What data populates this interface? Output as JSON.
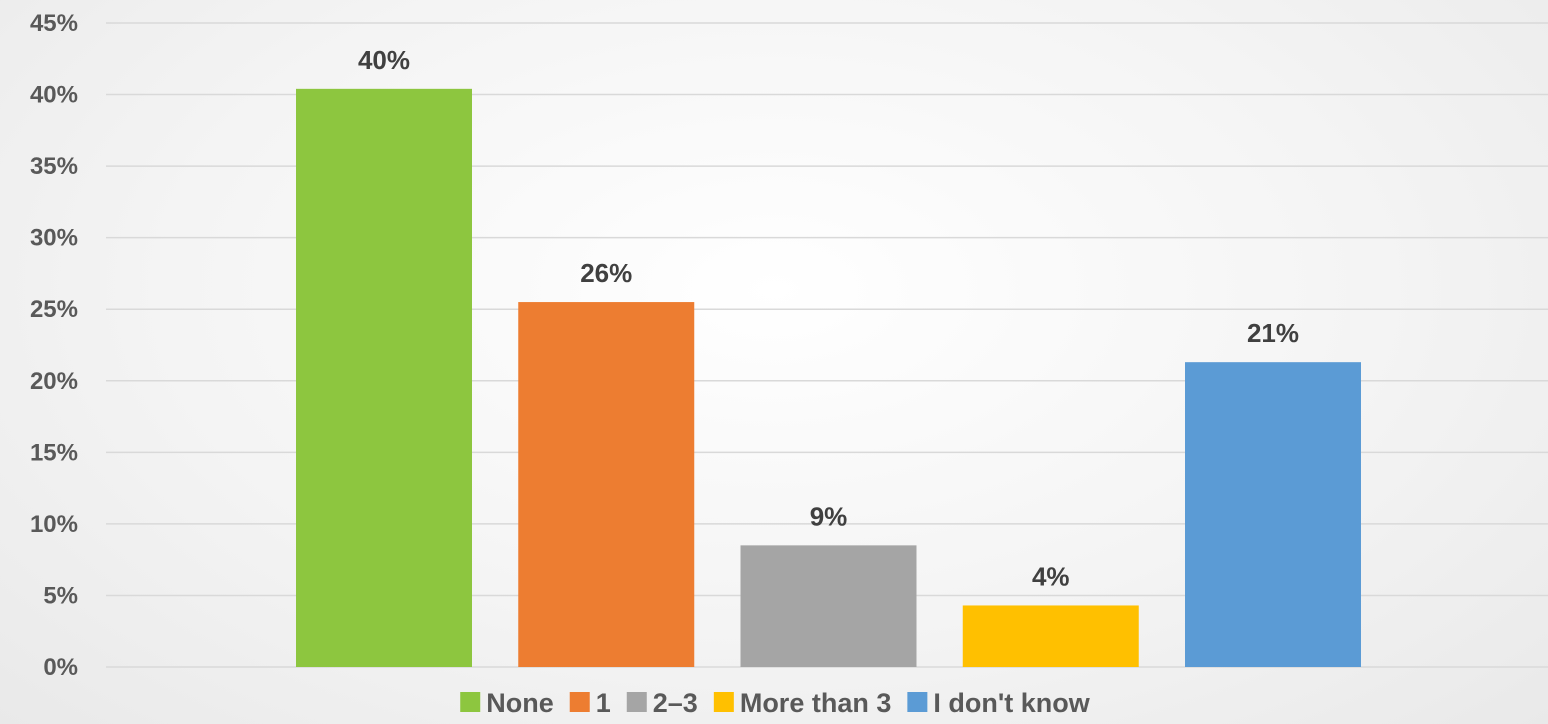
{
  "chart_data": {
    "type": "bar",
    "categories": [
      "None",
      "1",
      "2–3",
      "More than 3",
      "I don't know"
    ],
    "values": [
      40.4,
      25.5,
      8.5,
      4.3,
      21.3
    ],
    "data_labels": [
      "40%",
      "26%",
      "9%",
      "4%",
      "21%"
    ],
    "colors": [
      "#8DC63F",
      "#ED7D31",
      "#A5A5A5",
      "#FFC000",
      "#5B9BD5"
    ],
    "ylim": [
      0,
      45
    ],
    "yticks": [
      0,
      5,
      10,
      15,
      20,
      25,
      30,
      35,
      40,
      45
    ],
    "ytick_labels": [
      "0%",
      "5%",
      "10%",
      "15%",
      "20%",
      "25%",
      "30%",
      "35%",
      "40%",
      "45%"
    ],
    "grid": true,
    "legend_position": "bottom",
    "legend": [
      "None",
      "1",
      "2–3",
      "More than 3",
      "I don't know"
    ]
  }
}
